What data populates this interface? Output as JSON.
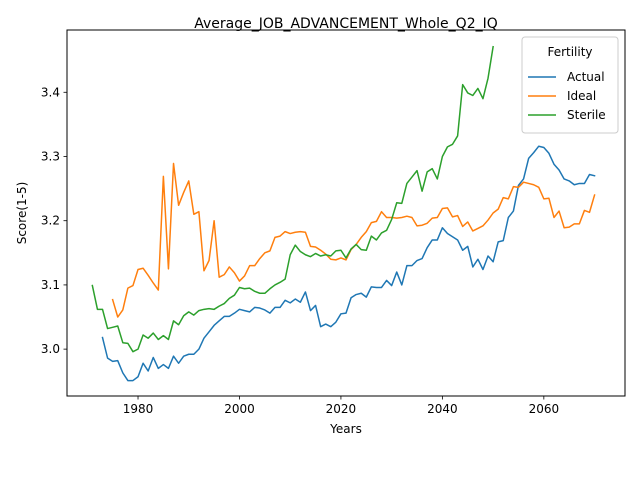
{
  "chart_data": {
    "type": "line",
    "title": "Average_JOB_ADVANCEMENT_Whole_Q2_IQ",
    "xlabel": "Years",
    "ylabel": "Score(1-5)",
    "xlim": [
      1966,
      2076
    ],
    "ylim": [
      2.927,
      3.497
    ],
    "xticks": [
      1980,
      2000,
      2020,
      2040,
      2060
    ],
    "yticks": [
      3.0,
      3.1,
      3.2,
      3.3,
      3.4
    ],
    "ytick_labels": [
      "3.0",
      "3.1",
      "3.2",
      "3.3",
      "3.4"
    ],
    "grid": false,
    "legend": {
      "title": "Fertility",
      "position": "top-right"
    },
    "series": [
      {
        "name": "Actual",
        "color": "#1f77b4",
        "x": [
          1973,
          1974,
          1975,
          1976,
          1977,
          1978,
          1979,
          1980,
          1981,
          1982,
          1983,
          1984,
          1985,
          1986,
          1987,
          1988,
          1989,
          1990,
          1991,
          1992,
          1993,
          1994,
          1995,
          1996,
          1997,
          1998,
          1999,
          2000,
          2001,
          2002,
          2003,
          2004,
          2005,
          2006,
          2007,
          2008,
          2009,
          2010,
          2011,
          2012,
          2013,
          2014,
          2015,
          2016,
          2017,
          2018,
          2019,
          2020,
          2021,
          2022,
          2023,
          2024,
          2025,
          2026,
          2027,
          2028,
          2029,
          2030,
          2031,
          2032,
          2033,
          2034,
          2035,
          2036,
          2037,
          2038,
          2039,
          2040,
          2041,
          2042,
          2043,
          2044,
          2045,
          2046,
          2047,
          2048,
          2049,
          2050,
          2051,
          2052,
          2053,
          2054,
          2055,
          2056,
          2057,
          2058,
          2059,
          2060,
          2061,
          2062,
          2063,
          2064,
          2065,
          2066,
          2067,
          2068,
          2069,
          2070
        ],
        "y": [
          3.018,
          2.986,
          2.981,
          2.982,
          2.963,
          2.951,
          2.951,
          2.957,
          2.978,
          2.966,
          2.987,
          2.97,
          2.976,
          2.97,
          2.989,
          2.978,
          2.989,
          2.992,
          2.992,
          3.0,
          3.017,
          3.027,
          3.037,
          3.044,
          3.051,
          3.051,
          3.056,
          3.062,
          3.06,
          3.058,
          3.065,
          3.064,
          3.061,
          3.056,
          3.065,
          3.065,
          3.076,
          3.072,
          3.078,
          3.073,
          3.089,
          3.06,
          3.068,
          3.035,
          3.039,
          3.035,
          3.042,
          3.055,
          3.056,
          3.08,
          3.085,
          3.087,
          3.081,
          3.097,
          3.096,
          3.096,
          3.107,
          3.099,
          3.12,
          3.1,
          3.13,
          3.13,
          3.138,
          3.141,
          3.158,
          3.17,
          3.17,
          3.189,
          3.18,
          3.175,
          3.17,
          3.154,
          3.16,
          3.128,
          3.14,
          3.124,
          3.145,
          3.136,
          3.167,
          3.169,
          3.205,
          3.215,
          3.255,
          3.265,
          3.297,
          3.306,
          3.316,
          3.314,
          3.305,
          3.288,
          3.279,
          3.265,
          3.262,
          3.256,
          3.258,
          3.258,
          3.272,
          3.27
        ]
      },
      {
        "name": "Ideal",
        "color": "#ff7f0e",
        "x": [
          1975,
          1976,
          1977,
          1978,
          1979,
          1980,
          1981,
          1982,
          1983,
          1984,
          1985,
          1986,
          1987,
          1988,
          1989,
          1990,
          1991,
          1992,
          1993,
          1994,
          1995,
          1996,
          1997,
          1998,
          1999,
          2000,
          2001,
          2002,
          2003,
          2004,
          2005,
          2006,
          2007,
          2008,
          2009,
          2010,
          2011,
          2012,
          2013,
          2014,
          2015,
          2016,
          2017,
          2018,
          2019,
          2020,
          2021,
          2022,
          2023,
          2024,
          2025,
          2026,
          2027,
          2028,
          2029,
          2030,
          2031,
          2032,
          2033,
          2034,
          2035,
          2036,
          2037,
          2038,
          2039,
          2040,
          2041,
          2042,
          2043,
          2044,
          2045,
          2046,
          2047,
          2048,
          2049,
          2050,
          2051,
          2052,
          2053,
          2054,
          2055,
          2056,
          2057,
          2058,
          2059,
          2060,
          2061,
          2062,
          2063,
          2064,
          2065,
          2066,
          2067,
          2068,
          2069,
          2070
        ],
        "y": [
          3.077,
          3.05,
          3.061,
          3.095,
          3.099,
          3.124,
          3.126,
          3.115,
          3.103,
          3.092,
          3.269,
          3.125,
          3.289,
          3.224,
          3.244,
          3.262,
          3.21,
          3.214,
          3.122,
          3.138,
          3.2,
          3.112,
          3.116,
          3.128,
          3.119,
          3.106,
          3.114,
          3.13,
          3.13,
          3.141,
          3.15,
          3.153,
          3.174,
          3.176,
          3.183,
          3.18,
          3.182,
          3.183,
          3.182,
          3.16,
          3.159,
          3.154,
          3.148,
          3.14,
          3.139,
          3.142,
          3.139,
          3.155,
          3.163,
          3.174,
          3.183,
          3.197,
          3.199,
          3.214,
          3.205,
          3.205,
          3.204,
          3.205,
          3.207,
          3.205,
          3.192,
          3.193,
          3.196,
          3.204,
          3.205,
          3.219,
          3.22,
          3.206,
          3.208,
          3.191,
          3.198,
          3.184,
          3.188,
          3.192,
          3.201,
          3.212,
          3.218,
          3.236,
          3.234,
          3.253,
          3.252,
          3.26,
          3.258,
          3.256,
          3.252,
          3.234,
          3.235,
          3.205,
          3.215,
          3.189,
          3.19,
          3.195,
          3.195,
          3.216,
          3.213,
          3.24
        ]
      },
      {
        "name": "Sterile",
        "color": "#2ca02c",
        "x": [
          1971,
          1972,
          1973,
          1974,
          1975,
          1976,
          1977,
          1978,
          1979,
          1980,
          1981,
          1982,
          1983,
          1984,
          1985,
          1986,
          1987,
          1988,
          1989,
          1990,
          1991,
          1992,
          1993,
          1994,
          1995,
          1996,
          1997,
          1998,
          1999,
          2000,
          2001,
          2002,
          2003,
          2004,
          2005,
          2006,
          2007,
          2008,
          2009,
          2010,
          2011,
          2012,
          2013,
          2014,
          2015,
          2016,
          2017,
          2018,
          2019,
          2020,
          2021,
          2022,
          2023,
          2024,
          2025,
          2026,
          2027,
          2028,
          2029,
          2030,
          2031,
          2032,
          2033,
          2034,
          2035,
          2036,
          2037,
          2038,
          2039,
          2040,
          2041,
          2042,
          2043,
          2044,
          2045,
          2046,
          2047,
          2048,
          2049,
          2050
        ],
        "y": [
          3.099,
          3.062,
          3.062,
          3.032,
          3.034,
          3.036,
          3.01,
          3.009,
          2.996,
          3.0,
          3.022,
          3.017,
          3.025,
          3.015,
          3.021,
          3.015,
          3.044,
          3.038,
          3.052,
          3.058,
          3.053,
          3.06,
          3.062,
          3.063,
          3.062,
          3.067,
          3.071,
          3.079,
          3.084,
          3.096,
          3.094,
          3.095,
          3.09,
          3.087,
          3.087,
          3.094,
          3.1,
          3.104,
          3.109,
          3.147,
          3.162,
          3.152,
          3.147,
          3.144,
          3.149,
          3.145,
          3.147,
          3.145,
          3.153,
          3.154,
          3.142,
          3.156,
          3.163,
          3.155,
          3.154,
          3.176,
          3.17,
          3.181,
          3.185,
          3.202,
          3.228,
          3.227,
          3.258,
          3.268,
          3.278,
          3.246,
          3.276,
          3.281,
          3.265,
          3.3,
          3.315,
          3.319,
          3.332,
          3.412,
          3.399,
          3.395,
          3.406,
          3.39,
          3.422,
          3.471
        ]
      }
    ]
  }
}
